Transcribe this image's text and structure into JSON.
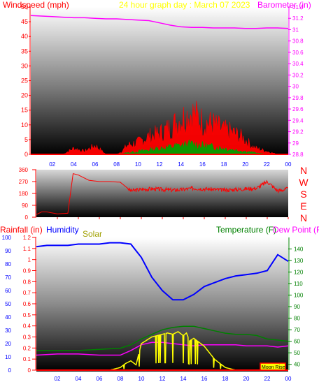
{
  "colors": {
    "wind_avg": "#00a000",
    "wind_gust": "#ff0000",
    "wind_avg2": "#0000ff",
    "pressure": "#ff00ff",
    "direction": "#ff0000",
    "humidity": "#0000ff",
    "solar": "#ffff00",
    "temperature": "#008000",
    "dewpoint": "#ff00ff",
    "rain": "#ff0000",
    "axis_red": "#ff0000",
    "axis_blue": "#0000ff",
    "axis_green": "#008000",
    "axis_magenta": "#ff00ff",
    "axis_olive": "#a0a000",
    "header_yellow": "#ffff00"
  },
  "chart_data": [
    {
      "type": "line",
      "panel": "wind-pressure",
      "title": "24 hour graph day : March 07 2023",
      "ylabel_left": "Windspeed (mph)",
      "ylabel_right": "Barometer (in)",
      "x_ticks": [
        "02",
        "04",
        "06",
        "08",
        "10",
        "12",
        "14",
        "16",
        "18",
        "20",
        "22",
        "00"
      ],
      "ylim_left": [
        0,
        50
      ],
      "yticks_left": [
        "0",
        "5",
        "10",
        "15",
        "20",
        "25",
        "30",
        "35",
        "40",
        "45",
        "50"
      ],
      "ylim_right": [
        28.8,
        31.4
      ],
      "yticks_right": [
        "28.8",
        "29",
        "29.2",
        "29.4",
        "29.6",
        "29.8",
        "30",
        "30.2",
        "30.4",
        "30.6",
        "30.8",
        "31",
        "31.2",
        "31.4"
      ],
      "series": [
        {
          "color_key": "pressure",
          "axis": "right",
          "x": [
            0,
            1,
            2,
            3,
            4,
            5,
            6,
            7,
            8,
            9,
            10,
            11,
            12,
            13,
            14,
            15,
            16,
            17,
            18,
            19,
            20,
            21,
            22,
            23,
            24
          ],
          "values": [
            31.25,
            31.24,
            31.23,
            31.22,
            31.21,
            31.21,
            31.2,
            31.19,
            31.19,
            31.18,
            31.17,
            31.16,
            31.12,
            31.08,
            31.05,
            31.04,
            31.04,
            31.03,
            31.03,
            31.03,
            31.02,
            31.02,
            31.03,
            31.03,
            31.02
          ]
        },
        {
          "color_key": "wind_gust",
          "axis": "left",
          "x": [
            0,
            1,
            2,
            3,
            4,
            5,
            6,
            7,
            8,
            8.5,
            9,
            10,
            11,
            12,
            13,
            14,
            15,
            16,
            17,
            18,
            19,
            20,
            20.5,
            21,
            22,
            23,
            24
          ],
          "values": [
            0,
            0,
            0,
            0,
            2,
            1,
            3,
            0,
            0,
            1,
            3,
            4,
            6,
            7,
            9,
            12,
            14,
            11,
            10,
            8,
            7,
            5,
            3,
            2,
            1,
            0,
            0
          ]
        },
        {
          "color_key": "wind_avg",
          "axis": "left",
          "x": [
            0,
            8,
            9,
            10,
            11,
            12,
            13,
            14,
            15,
            16,
            17,
            18,
            19,
            20,
            21,
            22,
            24
          ],
          "values": [
            0,
            0,
            0.5,
            1,
            1.5,
            2,
            2.5,
            3,
            3.5,
            3,
            2.5,
            2,
            1.5,
            1,
            0.5,
            0,
            0
          ]
        }
      ]
    },
    {
      "type": "line",
      "panel": "wind-direction",
      "x_ticks": [
        "02",
        "04",
        "06",
        "08",
        "10",
        "12",
        "14",
        "16",
        "18",
        "20",
        "22",
        "00"
      ],
      "ylim": [
        0,
        360
      ],
      "yticks_left": [
        "0",
        "90",
        "180",
        "270",
        "360"
      ],
      "compass_labels": [
        "N",
        "W",
        "S",
        "E",
        "N"
      ],
      "series": [
        {
          "color_key": "direction",
          "x": [
            0,
            0.5,
            1,
            2,
            3,
            3.5,
            4,
            5,
            6,
            7,
            8,
            9,
            10,
            11,
            12,
            13,
            14,
            15,
            16,
            17,
            18,
            19,
            20,
            21,
            22,
            23,
            24
          ],
          "values": [
            20,
            40,
            40,
            25,
            30,
            330,
            320,
            280,
            270,
            270,
            265,
            200,
            210,
            215,
            210,
            205,
            210,
            220,
            215,
            210,
            205,
            210,
            215,
            220,
            270,
            200,
            215
          ]
        }
      ]
    },
    {
      "type": "line",
      "panel": "rain-humidity-solar-temp",
      "labels": {
        "rain": "Rainfall (in)",
        "humidity": "Humidity",
        "solar": "Solar",
        "temperature": "Temperature (F)",
        "dewpoint": "Dew Point (F)",
        "moon": "Moon Rise"
      },
      "x_ticks": [
        "02",
        "04",
        "06",
        "08",
        "10",
        "12",
        "14",
        "16",
        "18",
        "20",
        "22",
        "00"
      ],
      "ylim_humidity": [
        0,
        100
      ],
      "yticks_humidity": [
        "0",
        "10",
        "20",
        "30",
        "40",
        "50",
        "60",
        "70",
        "80",
        "90",
        "100"
      ],
      "ylim_rain": [
        0,
        1.2
      ],
      "yticks_rain": [
        "0",
        "0.1",
        "0.2",
        "0.3",
        "0.4",
        "0.5",
        "0.6",
        "0.7",
        "0.8",
        "0.9",
        "1",
        "1.1",
        "1.2"
      ],
      "ylim_temp": [
        35,
        150
      ],
      "yticks_temp": [
        "40",
        "50",
        "60",
        "70",
        "80",
        "90",
        "100",
        "110",
        "120",
        "130",
        "140"
      ],
      "series": [
        {
          "color_key": "humidity",
          "axis": "humidity",
          "x": [
            0,
            1,
            2,
            3,
            4,
            5,
            6,
            7,
            8,
            9,
            10,
            11,
            12,
            13,
            14,
            15,
            16,
            17,
            18,
            19,
            20,
            21,
            22,
            23,
            24
          ],
          "values": [
            93,
            94,
            94,
            94,
            95,
            95,
            95,
            96,
            96,
            95,
            85,
            70,
            60,
            53,
            53,
            57,
            63,
            66,
            69,
            71,
            72,
            73,
            75,
            87,
            82
          ]
        },
        {
          "color_key": "temperature",
          "axis": "temp",
          "x": [
            0,
            2,
            4,
            6,
            8,
            9,
            10,
            11,
            12,
            13,
            14,
            15,
            16,
            17,
            18,
            19,
            20,
            21,
            22,
            23,
            24
          ],
          "values": [
            52,
            52,
            52,
            53,
            54,
            57,
            62,
            66,
            70,
            72,
            73,
            73,
            71,
            69,
            67,
            66,
            66,
            65,
            62,
            61,
            60
          ]
        },
        {
          "color_key": "dewpoint",
          "axis": "temp",
          "x": [
            0,
            2,
            4,
            6,
            8,
            9,
            10,
            11,
            12,
            13,
            14,
            15,
            16,
            17,
            18,
            19,
            20,
            21,
            22,
            23,
            24
          ],
          "values": [
            48,
            49,
            49,
            48,
            48,
            52,
            57,
            59,
            59,
            58,
            57,
            56,
            57,
            57,
            57,
            57,
            56,
            56,
            56,
            55,
            56
          ]
        },
        {
          "color_key": "solar",
          "axis": "humidity",
          "x": [
            0,
            6,
            7,
            8,
            8.5,
            9,
            9.5,
            10,
            11,
            12,
            12.5,
            13,
            13.5,
            14,
            14.3,
            14.6,
            15,
            16,
            17,
            18,
            19,
            20,
            24
          ],
          "values": [
            0,
            0,
            0,
            2,
            5,
            7,
            4,
            20,
            25,
            27,
            28,
            27,
            29,
            26,
            28,
            22,
            24,
            18,
            8,
            2,
            0,
            0,
            0
          ]
        }
      ]
    }
  ]
}
